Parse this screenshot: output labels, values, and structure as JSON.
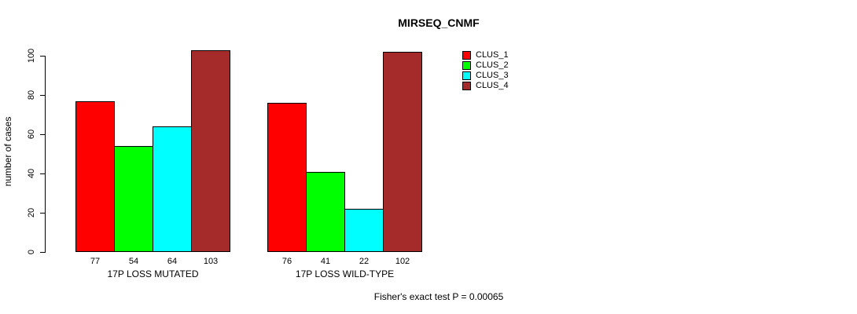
{
  "title": "MIRSEQ_CNMF",
  "footer": "Fisher's exact test P = 0.00065",
  "colors": {
    "clus_1": "#FF0000",
    "clus_2": "#00FF00",
    "clus_3": "#00FFFF",
    "clus_4": "#A52A2A",
    "axis": "#000000",
    "background": "#FFFFFF"
  },
  "chart_data": {
    "type": "bar",
    "title": "MIRSEQ_CNMF",
    "xlabel": "",
    "ylabel": "number of cases",
    "ylim": [
      0,
      100
    ],
    "yticks": [
      0,
      20,
      40,
      60,
      80,
      100
    ],
    "grid": false,
    "legend_position": "top-right",
    "categories": [
      "17P LOSS MUTATED",
      "17P LOSS WILD-TYPE"
    ],
    "series": [
      {
        "name": "CLUS_1",
        "color": "#FF0000",
        "values": [
          77,
          76
        ]
      },
      {
        "name": "CLUS_2",
        "color": "#00FF00",
        "values": [
          54,
          41
        ]
      },
      {
        "name": "CLUS_3",
        "color": "#00FFFF",
        "values": [
          64,
          22
        ]
      },
      {
        "name": "CLUS_4",
        "color": "#A52A2A",
        "values": [
          103,
          102
        ]
      }
    ],
    "bar_value_labels": [
      [
        77,
        54,
        64,
        103
      ],
      [
        76,
        41,
        22,
        102
      ]
    ],
    "annotation": "Fisher's exact test P = 0.00065"
  }
}
